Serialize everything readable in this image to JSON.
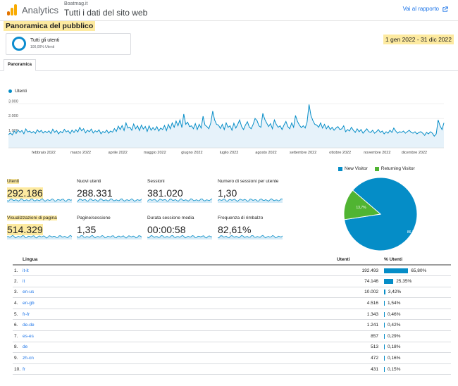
{
  "header": {
    "app_name": "Analytics",
    "property_account": "Boatmag.it",
    "property_view": "Tutti i dati del sito web",
    "go_to_report": "Vai al rapporto"
  },
  "page_title": "Panoramica del pubblico",
  "date_range": "1 gen 2022 - 31 dic 2022",
  "segment": {
    "name": "Tutti gli utenti",
    "percent": "100,00% Utenti"
  },
  "tabs": [
    "Panoramica"
  ],
  "colors": {
    "series": "#058dc7",
    "returning": "#50b432",
    "highlight": "#fdeaa0"
  },
  "chart_data": [
    {
      "type": "line",
      "series": [
        {
          "name": "Utenti",
          "values": [
            900,
            1020,
            880,
            1150,
            980,
            1210,
            1060,
            1180,
            960,
            1290,
            1080,
            1150,
            1020,
            1110,
            990,
            1230,
            1070,
            1190,
            1010,
            1130,
            1040,
            1160,
            980,
            1270,
            1060,
            1180,
            950,
            1120,
            1030,
            1260,
            1090,
            1170,
            970,
            1210,
            1050,
            1240,
            1080,
            1390,
            1160,
            1300,
            1020,
            1200,
            1100,
            1280,
            1010,
            1160,
            1080,
            1230,
            960,
            1120,
            1040,
            1210,
            1000,
            1150,
            1070,
            1310,
            1120,
            1480,
            1250,
            1520,
            1180,
            1700,
            1350,
            1410,
            1200,
            1620,
            1300,
            1500,
            1180,
            1550,
            1280,
            1460,
            1120,
            1500,
            1200,
            1380,
            1220,
            1450,
            1150,
            1350,
            1250,
            1520,
            1180,
            1600,
            1300,
            1700,
            1400,
            1820,
            1500,
            1900,
            1380,
            2300,
            1600,
            1750,
            1450,
            1500,
            1300,
            1650,
            1250,
            1600,
            1350,
            2150,
            1550,
            1450,
            1300,
            1700,
            2500,
            1900,
            1600,
            1550,
            1320,
            1600,
            1250,
            1700,
            1400,
            1500,
            1200,
            1680,
            1350,
            1600,
            1900,
            1450,
            1250,
            1550,
            1780,
            1420,
            1300,
            1600,
            2000,
            1850,
            1500,
            1400,
            2350,
            1950,
            1700,
            1450,
            1650,
            1300,
            1900,
            1600,
            1400,
            1500,
            1250,
            1550,
            1800,
            1450,
            1300,
            1700,
            1400,
            2200,
            1800,
            1550,
            1380,
            1500,
            1350,
            1750,
            2950,
            2200,
            1850,
            1600,
            1550,
            1400,
            1700,
            1350,
            1600,
            1300,
            1500,
            1250,
            1400,
            1200,
            1350,
            1450,
            1250,
            1300,
            1500,
            1100,
            1250,
            1150,
            1400,
            1200,
            1050,
            1300,
            1100,
            1250,
            1000,
            1150,
            1300,
            1100,
            1050,
            1200,
            1000,
            1100,
            1250,
            1050,
            1150,
            950,
            1100,
            1000,
            1200,
            1050,
            1350,
            1150,
            1000,
            1100,
            1050,
            1150,
            1000,
            1100,
            1200,
            1050,
            1000,
            1100,
            950,
            1050,
            1100,
            1000,
            850,
            1050,
            950,
            1100,
            1000,
            800,
            950,
            1900,
            1500,
            1250,
            1700
          ]
        }
      ],
      "x_labels": [
        "febbraio 2022",
        "marzo 2022",
        "aprile 2022",
        "maggio 2022",
        "giugno 2022",
        "luglio 2022",
        "agosto 2022",
        "settembre 2022",
        "ottobre 2022",
        "novembre 2022",
        "dicembre 2022"
      ],
      "y_labels": [
        "3.000",
        "2.000",
        "1.000"
      ],
      "ylim": [
        0,
        3300
      ]
    },
    {
      "type": "pie",
      "series": [
        {
          "name": "New Visitor",
          "value": 86.3,
          "label": "86,3%"
        },
        {
          "name": "Returning Visitor",
          "value": 13.7,
          "label": "13,7%"
        }
      ]
    }
  ],
  "metrics": [
    {
      "name": "Utenti",
      "value": "292.186",
      "highlight": true
    },
    {
      "name": "Nuovi utenti",
      "value": "288.331",
      "highlight": false
    },
    {
      "name": "Sessioni",
      "value": "381.020",
      "highlight": false
    },
    {
      "name": "Numero di sessioni per utente",
      "value": "1,30",
      "highlight": false
    },
    {
      "name": "Visualizzazioni di pagina",
      "value": "514.329",
      "highlight": true
    },
    {
      "name": "Pagine/sessione",
      "value": "1,35",
      "highlight": false
    },
    {
      "name": "Durata sessione media",
      "value": "00:00:58",
      "highlight": false
    },
    {
      "name": "Frequenza di rimbalzo",
      "value": "82,61%",
      "highlight": false
    }
  ],
  "table": {
    "headers": {
      "lang": "Lingua",
      "users": "Utenti",
      "pct": "% Utenti"
    },
    "rows": [
      {
        "num": "1.",
        "lang": "it-it",
        "users": "192.493",
        "pct": "65,80%",
        "share": 65.8
      },
      {
        "num": "2.",
        "lang": "it",
        "users": "74.146",
        "pct": "25,35%",
        "share": 25.35
      },
      {
        "num": "3.",
        "lang": "en-us",
        "users": "10.002",
        "pct": "3,42%",
        "share": 3.42
      },
      {
        "num": "4.",
        "lang": "en-gb",
        "users": "4.516",
        "pct": "1,54%",
        "share": 1.54
      },
      {
        "num": "5.",
        "lang": "fr-fr",
        "users": "1.343",
        "pct": "0,46%",
        "share": 0.46
      },
      {
        "num": "6.",
        "lang": "de-de",
        "users": "1.241",
        "pct": "0,42%",
        "share": 0.42
      },
      {
        "num": "7.",
        "lang": "es-es",
        "users": "857",
        "pct": "0,29%",
        "share": 0.29
      },
      {
        "num": "8.",
        "lang": "de",
        "users": "513",
        "pct": "0,18%",
        "share": 0.18
      },
      {
        "num": "9.",
        "lang": "zh-cn",
        "users": "472",
        "pct": "0,16%",
        "share": 0.16
      },
      {
        "num": "10.",
        "lang": "fr",
        "users": "431",
        "pct": "0,15%",
        "share": 0.15
      }
    ]
  }
}
